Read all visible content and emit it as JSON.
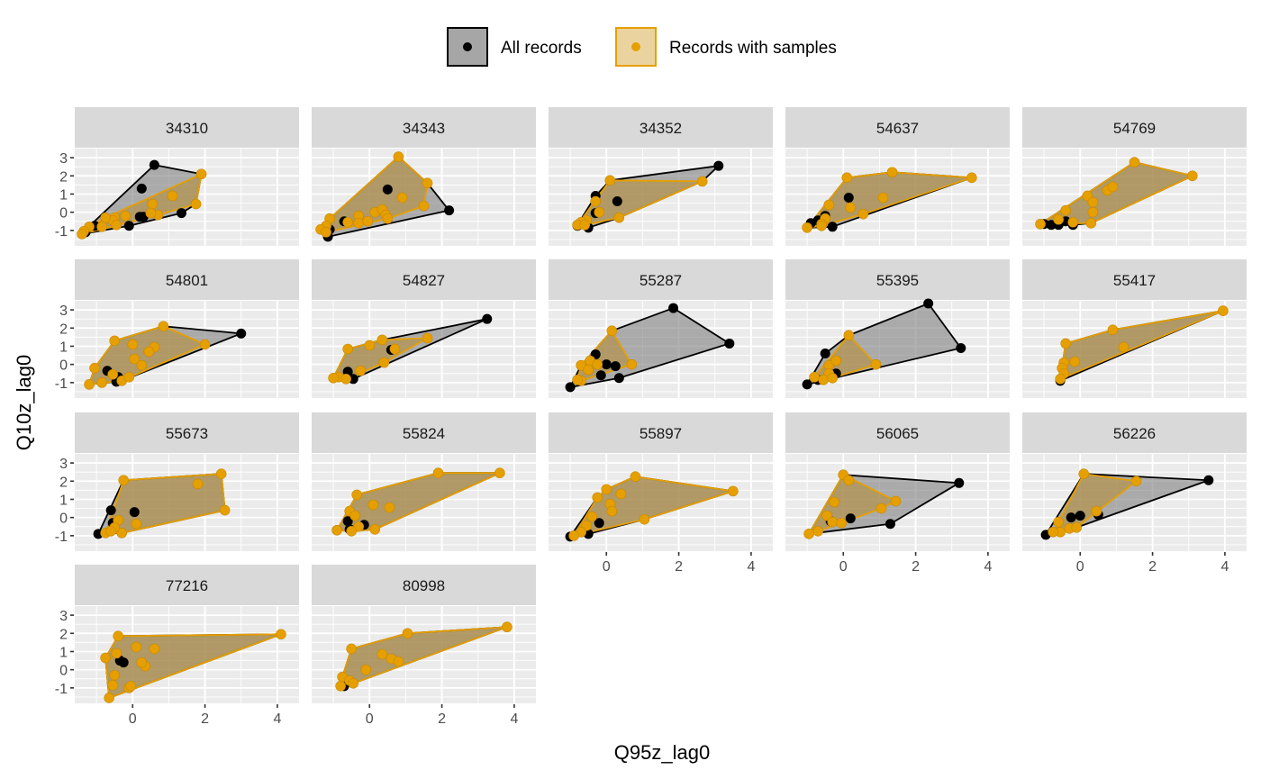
{
  "chart_data": {
    "type": "scatter",
    "subtype": "faceted scatter with convex hulls",
    "xlabel": "Q95z_lag0",
    "ylabel": "Q10z_lag0",
    "xlim": [
      -1.6,
      4.6
    ],
    "ylim": [
      -1.85,
      3.5
    ],
    "x_ticks": [
      "0",
      "2",
      "4"
    ],
    "x_tick_values": [
      0,
      2,
      4
    ],
    "y_ticks": [
      "3",
      "2",
      "1",
      "0",
      "-1"
    ],
    "y_tick_values": [
      3,
      2,
      1,
      0,
      -1
    ],
    "grid": true,
    "legend": {
      "placement": "top",
      "entries": [
        {
          "label": "All records",
          "point_color": "#000000",
          "fill": "#a6a6a6",
          "stroke": "#000000"
        },
        {
          "label": "Records with samples",
          "point_color": "#E69F00",
          "fill": "#ebd3a0",
          "stroke": "#E69F00"
        }
      ]
    },
    "colors": {
      "all_point": "#000000",
      "all_fill": "#7f7f7f",
      "samples_point": "#E69F00",
      "samples_fill": "#b58a2e",
      "panel_bg": "#ebebeb",
      "strip_bg": "#d9d9d9",
      "grid": "#ffffff"
    },
    "panels": [
      {
        "id": "34310",
        "all": [
          [
            0.6,
            2.6
          ],
          [
            0.25,
            1.3
          ],
          [
            0.2,
            -0.25
          ],
          [
            0.3,
            -0.25
          ],
          [
            -0.1,
            -0.75
          ],
          [
            1.35,
            -0.05
          ],
          [
            -1.05,
            -0.75
          ],
          [
            -1.3,
            -1.1
          ]
        ],
        "samples": [
          [
            1.9,
            2.1
          ],
          [
            1.75,
            0.45
          ],
          [
            1.1,
            0.9
          ],
          [
            0.55,
            0.45
          ],
          [
            0.7,
            -0.15
          ],
          [
            0.5,
            -0.05
          ],
          [
            -0.2,
            -0.2
          ],
          [
            -0.5,
            -0.3
          ],
          [
            -0.55,
            -0.45
          ],
          [
            -0.75,
            -0.3
          ],
          [
            -0.45,
            -0.7
          ],
          [
            -0.85,
            -0.8
          ],
          [
            -1.2,
            -0.8
          ],
          [
            -1.35,
            -1.05
          ],
          [
            -1.4,
            -1.2
          ]
        ]
      },
      {
        "id": "34343",
        "all": [
          [
            2.2,
            0.1
          ],
          [
            0.5,
            1.25
          ],
          [
            -0.7,
            -0.5
          ],
          [
            -1.15,
            -1.35
          ],
          [
            -1.1,
            -0.95
          ]
        ],
        "samples": [
          [
            0.8,
            3.05
          ],
          [
            1.6,
            1.6
          ],
          [
            1.5,
            0.35
          ],
          [
            0.9,
            0.8
          ],
          [
            -1.1,
            -0.35
          ],
          [
            -1.2,
            -0.75
          ],
          [
            -1.35,
            -0.95
          ],
          [
            -1.2,
            -1.1
          ],
          [
            -0.3,
            -0.2
          ],
          [
            -0.3,
            -0.6
          ],
          [
            -0.05,
            -0.5
          ],
          [
            0.15,
            0.0
          ],
          [
            0.35,
            0.15
          ],
          [
            0.45,
            -0.15
          ],
          [
            0.5,
            -0.35
          ],
          [
            -0.6,
            -0.55
          ]
        ]
      },
      {
        "id": "34352",
        "all": [
          [
            3.1,
            2.55
          ],
          [
            -0.3,
            0.9
          ],
          [
            0.3,
            0.6
          ],
          [
            -0.3,
            -0.05
          ],
          [
            -0.8,
            -0.75
          ],
          [
            -0.5,
            -0.85
          ]
        ],
        "samples": [
          [
            0.1,
            1.75
          ],
          [
            2.65,
            1.7
          ],
          [
            -0.3,
            0.6
          ],
          [
            -0.2,
            0.0
          ],
          [
            0.35,
            -0.3
          ],
          [
            -0.55,
            -0.45
          ],
          [
            -0.7,
            -0.55
          ],
          [
            -0.8,
            -0.7
          ],
          [
            -0.6,
            -0.7
          ]
        ]
      },
      {
        "id": "54637",
        "all": [
          [
            0.15,
            0.8
          ],
          [
            -0.9,
            -0.6
          ],
          [
            -0.5,
            -0.2
          ],
          [
            -0.3,
            -0.8
          ],
          [
            -0.7,
            -0.45
          ]
        ],
        "samples": [
          [
            0.1,
            1.9
          ],
          [
            1.35,
            2.2
          ],
          [
            3.55,
            1.9
          ],
          [
            1.1,
            0.8
          ],
          [
            0.2,
            0.25
          ],
          [
            0.55,
            -0.1
          ],
          [
            -0.4,
            0.4
          ],
          [
            -0.5,
            -0.35
          ],
          [
            -0.6,
            -0.65
          ],
          [
            -1.0,
            -0.85
          ],
          [
            -0.6,
            -0.75
          ]
        ]
      },
      {
        "id": "54769",
        "all": [
          [
            -1.0,
            -0.65
          ],
          [
            -0.8,
            -0.7
          ],
          [
            -0.4,
            -0.5
          ],
          [
            -0.2,
            -0.7
          ],
          [
            -0.6,
            -0.7
          ]
        ],
        "samples": [
          [
            1.5,
            2.75
          ],
          [
            3.1,
            2.0
          ],
          [
            0.75,
            1.2
          ],
          [
            0.9,
            1.4
          ],
          [
            0.2,
            0.9
          ],
          [
            0.35,
            0.55
          ],
          [
            0.35,
            0.0
          ],
          [
            -0.4,
            0.1
          ],
          [
            -1.1,
            -0.65
          ],
          [
            -0.6,
            -0.4
          ],
          [
            -0.2,
            -0.55
          ],
          [
            0.3,
            -0.6
          ]
        ]
      },
      {
        "id": "54801",
        "all": [
          [
            3.0,
            1.7
          ],
          [
            -0.7,
            -0.35
          ],
          [
            -0.45,
            -0.95
          ],
          [
            -0.4,
            -0.7
          ]
        ],
        "samples": [
          [
            0.85,
            2.1
          ],
          [
            -0.5,
            1.3
          ],
          [
            2.0,
            1.1
          ],
          [
            0.0,
            1.1
          ],
          [
            0.6,
            0.95
          ],
          [
            0.45,
            0.7
          ],
          [
            0.05,
            0.3
          ],
          [
            0.25,
            -0.05
          ],
          [
            -1.05,
            -0.2
          ],
          [
            -0.55,
            -0.55
          ],
          [
            -0.3,
            -0.9
          ],
          [
            -0.1,
            -0.7
          ],
          [
            -0.85,
            -1.0
          ],
          [
            -1.2,
            -1.1
          ]
        ]
      },
      {
        "id": "54827",
        "all": [
          [
            3.25,
            2.5
          ],
          [
            0.6,
            0.8
          ],
          [
            -0.6,
            -0.4
          ],
          [
            -0.45,
            -0.8
          ]
        ],
        "samples": [
          [
            1.6,
            1.45
          ],
          [
            0.35,
            1.35
          ],
          [
            0.0,
            1.05
          ],
          [
            -0.6,
            0.85
          ],
          [
            0.7,
            0.85
          ],
          [
            0.4,
            0.1
          ],
          [
            -0.25,
            -0.35
          ],
          [
            -0.85,
            -0.7
          ],
          [
            -0.65,
            -0.8
          ],
          [
            -1.0,
            -0.75
          ]
        ]
      },
      {
        "id": "55287",
        "all": [
          [
            1.85,
            3.1
          ],
          [
            3.4,
            1.15
          ],
          [
            -1.0,
            -1.25
          ],
          [
            0.35,
            -0.75
          ],
          [
            -0.3,
            0.55
          ],
          [
            0.0,
            0.0
          ],
          [
            0.25,
            -0.1
          ],
          [
            -0.15,
            -0.6
          ]
        ],
        "samples": [
          [
            0.15,
            1.85
          ],
          [
            0.7,
            0.0
          ],
          [
            -0.7,
            -0.05
          ],
          [
            -0.45,
            0.2
          ],
          [
            -0.25,
            0.0
          ],
          [
            -0.7,
            -0.9
          ],
          [
            -0.8,
            -0.85
          ],
          [
            -0.5,
            -0.3
          ]
        ]
      },
      {
        "id": "55395",
        "all": [
          [
            2.35,
            3.35
          ],
          [
            3.25,
            0.9
          ],
          [
            -1.0,
            -1.1
          ],
          [
            -0.5,
            0.6
          ],
          [
            -0.2,
            -0.5
          ],
          [
            -0.7,
            -0.85
          ]
        ],
        "samples": [
          [
            0.15,
            1.6
          ],
          [
            0.9,
            0.0
          ],
          [
            -0.8,
            -0.7
          ],
          [
            -0.4,
            -0.05
          ],
          [
            -0.2,
            0.2
          ],
          [
            -0.4,
            -0.5
          ],
          [
            -0.55,
            -0.85
          ],
          [
            -0.3,
            -0.75
          ]
        ]
      },
      {
        "id": "55417",
        "all": [
          [
            -0.55,
            -0.9
          ]
        ],
        "samples": [
          [
            3.95,
            2.95
          ],
          [
            0.9,
            1.9
          ],
          [
            -0.4,
            1.15
          ],
          [
            1.2,
            0.95
          ],
          [
            -0.15,
            0.15
          ],
          [
            -0.45,
            0.1
          ],
          [
            -0.5,
            -0.2
          ],
          [
            -0.45,
            -0.5
          ],
          [
            -0.55,
            -0.8
          ]
        ]
      },
      {
        "id": "55673",
        "all": [
          [
            -0.95,
            -0.9
          ],
          [
            -0.6,
            0.4
          ],
          [
            0.05,
            0.3
          ],
          [
            -0.55,
            -0.3
          ],
          [
            -0.3,
            -0.85
          ]
        ],
        "samples": [
          [
            -0.25,
            2.05
          ],
          [
            2.45,
            2.4
          ],
          [
            1.8,
            1.85
          ],
          [
            2.55,
            0.4
          ],
          [
            -0.4,
            -0.15
          ],
          [
            0.1,
            -0.35
          ],
          [
            -0.3,
            -0.85
          ],
          [
            -0.5,
            -0.55
          ],
          [
            -0.75,
            -0.85
          ],
          [
            -0.6,
            -0.75
          ]
        ]
      },
      {
        "id": "55824",
        "all": [
          [
            -0.9,
            -0.7
          ],
          [
            -0.55,
            -0.65
          ],
          [
            -0.15,
            -0.4
          ],
          [
            -0.6,
            -0.2
          ]
        ],
        "samples": [
          [
            1.9,
            2.45
          ],
          [
            3.6,
            2.45
          ],
          [
            -0.35,
            1.25
          ],
          [
            0.1,
            0.7
          ],
          [
            0.55,
            0.55
          ],
          [
            -0.55,
            0.35
          ],
          [
            -0.4,
            0.1
          ],
          [
            -0.3,
            -0.5
          ],
          [
            0.15,
            -0.65
          ],
          [
            -0.9,
            -0.7
          ],
          [
            -0.5,
            -0.75
          ]
        ]
      },
      {
        "id": "55897",
        "all": [
          [
            -1.0,
            -1.05
          ],
          [
            -0.2,
            -0.3
          ],
          [
            -0.5,
            -0.9
          ]
        ],
        "samples": [
          [
            0.8,
            2.25
          ],
          [
            3.5,
            1.45
          ],
          [
            0.0,
            1.55
          ],
          [
            0.4,
            1.3
          ],
          [
            -0.25,
            1.1
          ],
          [
            0.1,
            0.75
          ],
          [
            0.15,
            0.35
          ],
          [
            -0.4,
            0.05
          ],
          [
            -0.55,
            -0.45
          ],
          [
            1.05,
            -0.1
          ],
          [
            -0.7,
            -0.8
          ],
          [
            -0.9,
            -1.0
          ]
        ]
      },
      {
        "id": "56065",
        "all": [
          [
            3.2,
            1.9
          ],
          [
            1.3,
            -0.35
          ],
          [
            0.2,
            -0.05
          ],
          [
            -0.35,
            -0.2
          ]
        ],
        "samples": [
          [
            0.0,
            2.35
          ],
          [
            0.15,
            2.05
          ],
          [
            1.45,
            0.9
          ],
          [
            1.05,
            0.5
          ],
          [
            -0.25,
            0.85
          ],
          [
            -0.45,
            0.1
          ],
          [
            -0.3,
            -0.25
          ],
          [
            -0.05,
            -0.3
          ],
          [
            -0.7,
            -0.75
          ],
          [
            -0.95,
            -0.9
          ]
        ]
      },
      {
        "id": "56226",
        "all": [
          [
            3.55,
            2.05
          ],
          [
            -0.95,
            -0.95
          ],
          [
            0.5,
            0.15
          ],
          [
            0.0,
            0.1
          ],
          [
            -0.25,
            0.0
          ]
        ],
        "samples": [
          [
            0.1,
            2.4
          ],
          [
            1.55,
            2.0
          ],
          [
            0.45,
            0.35
          ],
          [
            -0.6,
            -0.25
          ],
          [
            -0.3,
            -0.6
          ],
          [
            -0.55,
            -0.8
          ],
          [
            -0.1,
            -0.55
          ],
          [
            -0.75,
            -0.8
          ]
        ]
      },
      {
        "id": "77216",
        "all": [
          [
            -0.25,
            0.4
          ],
          [
            -0.35,
            0.5
          ]
        ],
        "samples": [
          [
            -0.4,
            1.85
          ],
          [
            4.1,
            1.95
          ],
          [
            0.1,
            1.25
          ],
          [
            0.6,
            1.15
          ],
          [
            -0.45,
            0.9
          ],
          [
            -0.75,
            0.65
          ],
          [
            0.35,
            0.2
          ],
          [
            0.25,
            0.4
          ],
          [
            -0.5,
            -0.3
          ],
          [
            -0.55,
            -0.85
          ],
          [
            -0.1,
            -1.0
          ],
          [
            -0.05,
            -0.9
          ],
          [
            -0.65,
            -1.55
          ]
        ]
      },
      {
        "id": "80998",
        "all": [
          [
            -0.7,
            -0.9
          ]
        ],
        "samples": [
          [
            1.05,
            2.0
          ],
          [
            3.8,
            2.35
          ],
          [
            -0.5,
            1.15
          ],
          [
            0.35,
            0.85
          ],
          [
            0.6,
            0.6
          ],
          [
            0.8,
            0.45
          ],
          [
            -0.1,
            0.0
          ],
          [
            -0.75,
            -0.4
          ],
          [
            -0.55,
            -0.6
          ],
          [
            -0.8,
            -0.9
          ],
          [
            -0.45,
            -0.75
          ]
        ]
      }
    ]
  }
}
